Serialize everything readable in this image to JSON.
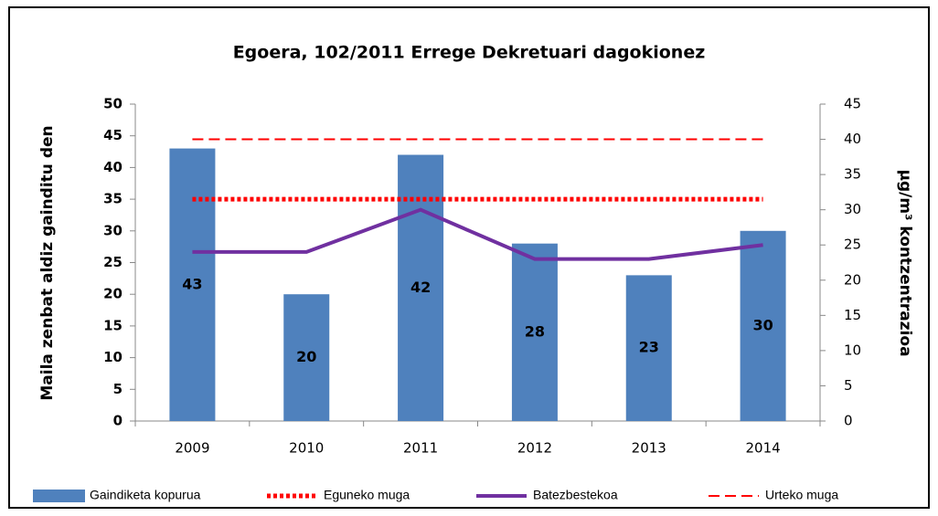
{
  "chart_data": {
    "type": "bar",
    "title": "Egoera, 102/2011 Errege Dekretuari dagokionez",
    "ylabel": "Maila zenbat aldiz gainditu den",
    "y2label": "µg/m³ kontzentrazioa",
    "categories": [
      "2009",
      "2010",
      "2011",
      "2012",
      "2013",
      "2014"
    ],
    "ylim": [
      0,
      50
    ],
    "yticks": [
      0,
      5,
      10,
      15,
      20,
      25,
      30,
      35,
      40,
      45,
      50
    ],
    "y2lim": [
      0,
      45
    ],
    "y2ticks": [
      0,
      5,
      10,
      15,
      20,
      25,
      30,
      35,
      40,
      45
    ],
    "series": [
      {
        "name": "Gaindiketa kopurua",
        "type": "bar",
        "color": "#4f81bd",
        "axis": "y",
        "values": [
          43,
          20,
          42,
          28,
          23,
          30
        ]
      },
      {
        "name": "Eguneko muga",
        "type": "line",
        "style": "dotted",
        "color": "#ff0000",
        "axis": "y",
        "values": [
          35,
          35,
          35,
          35,
          35,
          35
        ]
      },
      {
        "name": "Batezbestekoa",
        "type": "line",
        "style": "solid",
        "color": "#7030a0",
        "axis": "y2",
        "values": [
          24,
          24,
          30,
          23,
          23,
          25
        ]
      },
      {
        "name": "Urteko muga",
        "type": "line",
        "style": "dashed",
        "color": "#ff0000",
        "axis": "y2",
        "values": [
          40,
          40,
          40,
          40,
          40,
          40
        ]
      }
    ],
    "legend": "bottom"
  }
}
